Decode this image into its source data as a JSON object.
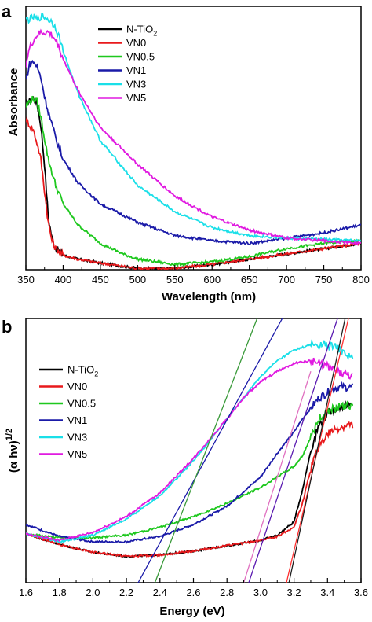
{
  "chart_data": [
    {
      "type": "line",
      "panel": "a",
      "xlabel": "Wavelength (nm)",
      "ylabel": "Absorbance",
      "xlim": [
        350,
        800
      ],
      "ylim": [
        0,
        1
      ],
      "xticks": [
        "350",
        "400",
        "450",
        "500",
        "550",
        "600",
        "650",
        "700",
        "750",
        "800"
      ],
      "yticks_shown": false,
      "legend_position": "top-center",
      "legend": [
        {
          "base": "N-TiO",
          "sub": "2"
        },
        {
          "base": "VN0",
          "sub": ""
        },
        {
          "base": "VN0.5",
          "sub": ""
        },
        {
          "base": "VN1",
          "sub": ""
        },
        {
          "base": "VN3",
          "sub": ""
        },
        {
          "base": "VN5",
          "sub": ""
        }
      ],
      "series": [
        {
          "name": "N-TiO2",
          "color": "#000000",
          "x": [
            350,
            355,
            360,
            365,
            370,
            375,
            380,
            385,
            390,
            395,
            400,
            420,
            450,
            500,
            550,
            600,
            650,
            700,
            750,
            800
          ],
          "y": [
            0.63,
            0.64,
            0.65,
            0.63,
            0.55,
            0.4,
            0.2,
            0.12,
            0.08,
            0.07,
            0.055,
            0.04,
            0.025,
            0.005,
            0.005,
            0.02,
            0.04,
            0.06,
            0.08,
            0.1
          ]
        },
        {
          "name": "VN0",
          "color": "#e8191c",
          "x": [
            350,
            355,
            360,
            365,
            370,
            375,
            380,
            385,
            390,
            395,
            400,
            420,
            450,
            500,
            550,
            600,
            650,
            700,
            750,
            800
          ],
          "y": [
            0.57,
            0.55,
            0.53,
            0.48,
            0.42,
            0.3,
            0.18,
            0.11,
            0.08,
            0.07,
            0.055,
            0.04,
            0.025,
            0.005,
            0.005,
            0.02,
            0.04,
            0.06,
            0.08,
            0.1
          ]
        },
        {
          "name": "VN0.5",
          "color": "#1ec81e",
          "x": [
            350,
            355,
            360,
            365,
            370,
            380,
            390,
            400,
            420,
            450,
            480,
            500,
            550,
            600,
            650,
            700,
            750,
            800
          ],
          "y": [
            0.62,
            0.64,
            0.65,
            0.64,
            0.58,
            0.42,
            0.32,
            0.25,
            0.17,
            0.1,
            0.06,
            0.04,
            0.02,
            0.03,
            0.05,
            0.08,
            0.1,
            0.11
          ]
        },
        {
          "name": "VN1",
          "color": "#1a1aa8",
          "x": [
            350,
            355,
            360,
            365,
            370,
            375,
            380,
            390,
            400,
            420,
            450,
            500,
            550,
            600,
            650,
            700,
            750,
            800
          ],
          "y": [
            0.72,
            0.78,
            0.79,
            0.77,
            0.73,
            0.66,
            0.6,
            0.5,
            0.42,
            0.33,
            0.25,
            0.18,
            0.13,
            0.11,
            0.1,
            0.12,
            0.14,
            0.17
          ]
        },
        {
          "name": "VN3",
          "color": "#1adfe8",
          "x": [
            350,
            355,
            360,
            365,
            370,
            375,
            380,
            385,
            390,
            395,
            400,
            420,
            450,
            500,
            550,
            600,
            650,
            700,
            750,
            800
          ],
          "y": [
            0.95,
            0.95,
            0.96,
            0.95,
            0.96,
            0.96,
            0.95,
            0.94,
            0.92,
            0.88,
            0.83,
            0.67,
            0.49,
            0.32,
            0.22,
            0.16,
            0.13,
            0.12,
            0.115,
            0.11
          ]
        },
        {
          "name": "VN5",
          "color": "#e01ae0",
          "x": [
            350,
            355,
            360,
            365,
            370,
            375,
            380,
            385,
            390,
            395,
            400,
            420,
            450,
            500,
            550,
            600,
            650,
            700,
            750,
            800
          ],
          "y": [
            0.78,
            0.84,
            0.87,
            0.89,
            0.9,
            0.9,
            0.9,
            0.89,
            0.87,
            0.84,
            0.8,
            0.68,
            0.54,
            0.4,
            0.28,
            0.2,
            0.15,
            0.12,
            0.11,
            0.1
          ]
        }
      ]
    },
    {
      "type": "line",
      "panel": "b",
      "xlabel": "Energy (eV)",
      "ylabel_base": "(α hν)",
      "ylabel_sup": "1/2",
      "xlim": [
        1.6,
        3.6
      ],
      "ylim": [
        0,
        1
      ],
      "xticks": [
        "1.6",
        "1.8",
        "2.0",
        "2.2",
        "2.4",
        "2.6",
        "2.8",
        "3.0",
        "3.2",
        "3.4",
        "3.6"
      ],
      "yticks_shown": false,
      "legend_position": "left-middle",
      "legend": [
        {
          "base": "N-TiO",
          "sub": "2"
        },
        {
          "base": "VN0",
          "sub": ""
        },
        {
          "base": "VN0.5",
          "sub": ""
        },
        {
          "base": "VN1",
          "sub": ""
        },
        {
          "base": "VN3",
          "sub": ""
        },
        {
          "base": "VN5",
          "sub": ""
        }
      ],
      "series": [
        {
          "name": "N-TiO2",
          "color": "#000000",
          "x": [
            1.6,
            1.8,
            2.0,
            2.2,
            2.4,
            2.6,
            2.8,
            3.0,
            3.1,
            3.2,
            3.25,
            3.3,
            3.35,
            3.4,
            3.45,
            3.5,
            3.55
          ],
          "y": [
            0.185,
            0.145,
            0.115,
            0.1,
            0.105,
            0.12,
            0.14,
            0.16,
            0.18,
            0.23,
            0.35,
            0.5,
            0.6,
            0.64,
            0.66,
            0.67,
            0.67
          ]
        },
        {
          "name": "VN0",
          "color": "#e8191c",
          "x": [
            1.6,
            1.8,
            2.0,
            2.2,
            2.4,
            2.6,
            2.8,
            3.0,
            3.1,
            3.2,
            3.25,
            3.3,
            3.35,
            3.4,
            3.45,
            3.5,
            3.55
          ],
          "y": [
            0.185,
            0.145,
            0.115,
            0.1,
            0.105,
            0.12,
            0.14,
            0.16,
            0.175,
            0.21,
            0.3,
            0.43,
            0.52,
            0.56,
            0.58,
            0.59,
            0.6
          ]
        },
        {
          "name": "VN0.5",
          "color": "#1ec81e",
          "x": [
            1.6,
            1.8,
            2.0,
            2.2,
            2.4,
            2.6,
            2.8,
            3.0,
            3.1,
            3.2,
            3.25,
            3.3,
            3.35,
            3.4,
            3.45,
            3.5,
            3.55
          ],
          "y": [
            0.185,
            0.17,
            0.17,
            0.18,
            0.21,
            0.25,
            0.3,
            0.36,
            0.4,
            0.44,
            0.48,
            0.55,
            0.62,
            0.65,
            0.66,
            0.67,
            0.67
          ]
        },
        {
          "name": "VN1",
          "color": "#1a1aa8",
          "x": [
            1.6,
            1.8,
            2.0,
            2.2,
            2.4,
            2.6,
            2.8,
            3.0,
            3.1,
            3.2,
            3.25,
            3.3,
            3.35,
            3.4,
            3.45,
            3.5,
            3.55
          ],
          "y": [
            0.22,
            0.175,
            0.155,
            0.155,
            0.175,
            0.22,
            0.29,
            0.4,
            0.49,
            0.57,
            0.62,
            0.66,
            0.7,
            0.72,
            0.74,
            0.74,
            0.74
          ]
        },
        {
          "name": "VN3",
          "color": "#1adfe8",
          "x": [
            1.6,
            1.8,
            2.0,
            2.2,
            2.4,
            2.6,
            2.8,
            2.9,
            3.0,
            3.1,
            3.2,
            3.3,
            3.4,
            3.45,
            3.5,
            3.55
          ],
          "y": [
            0.185,
            0.155,
            0.18,
            0.24,
            0.33,
            0.46,
            0.62,
            0.7,
            0.78,
            0.84,
            0.88,
            0.9,
            0.9,
            0.89,
            0.87,
            0.85
          ]
        },
        {
          "name": "VN5",
          "color": "#e01ae0",
          "x": [
            1.6,
            1.8,
            2.0,
            2.2,
            2.4,
            2.6,
            2.8,
            2.9,
            3.0,
            3.1,
            3.2,
            3.3,
            3.4,
            3.45,
            3.5,
            3.55
          ],
          "y": [
            0.185,
            0.16,
            0.19,
            0.25,
            0.34,
            0.47,
            0.62,
            0.7,
            0.76,
            0.8,
            0.83,
            0.84,
            0.82,
            0.8,
            0.79,
            0.78
          ]
        }
      ],
      "tangent_lines": [
        {
          "color": "#1a1aa8",
          "x": [
            2.27,
            3.13
          ],
          "y": [
            0.0,
            1.0
          ]
        },
        {
          "color": "#3a9a3a",
          "x": [
            2.37,
            2.98
          ],
          "y": [
            0.0,
            1.0
          ]
        },
        {
          "color": "#ff3030",
          "x": [
            3.155,
            3.525
          ],
          "y": [
            0.0,
            1.0
          ]
        },
        {
          "color": "#222222",
          "x": [
            3.17,
            3.505
          ],
          "y": [
            0.0,
            1.0
          ]
        },
        {
          "color": "#5a1ab0",
          "x": [
            2.93,
            3.46
          ],
          "y": [
            0.0,
            1.0
          ]
        },
        {
          "color": "#e070c0",
          "x": [
            2.9,
            3.3
          ],
          "y": [
            0.0,
            0.8
          ]
        }
      ]
    }
  ]
}
